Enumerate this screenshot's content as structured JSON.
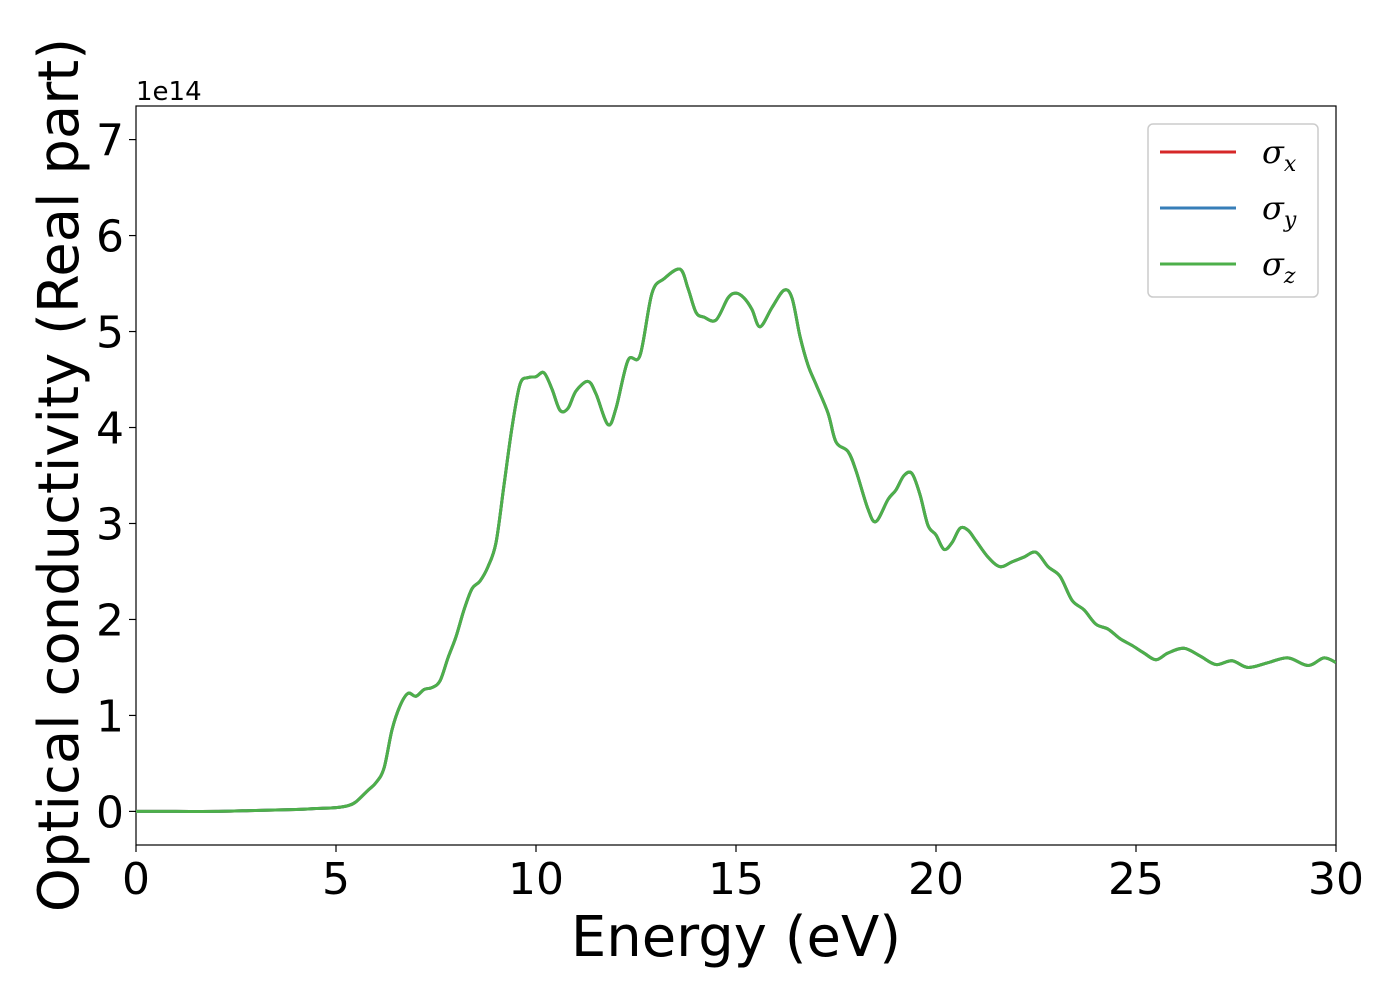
{
  "chart_data": {
    "type": "line",
    "xlabel": "Energy (eV)",
    "ylabel": "Optical conductivity (Real part)",
    "y_offset_label": "1e14",
    "xlim": [
      0,
      30
    ],
    "ylim": [
      -0.35,
      7.35
    ],
    "xticks": [
      0,
      5,
      10,
      15,
      20,
      25,
      30
    ],
    "xtick_labels": [
      "0",
      "5",
      "10",
      "15",
      "20",
      "25",
      "30"
    ],
    "yticks": [
      0,
      1,
      2,
      3,
      4,
      5,
      6,
      7
    ],
    "ytick_labels": [
      "0",
      "1",
      "2",
      "3",
      "4",
      "5",
      "6",
      "7"
    ],
    "grid": false,
    "legend_position": "top-right",
    "series": [
      {
        "name": "σx",
        "legend_symbol": "σ",
        "legend_subscript": "x",
        "color": "#d62728",
        "x": [
          0,
          1,
          2,
          3,
          4,
          4.5,
          5,
          5.3,
          5.5,
          5.8,
          6.0,
          6.2,
          6.4,
          6.6,
          6.8,
          7.0,
          7.2,
          7.4,
          7.6,
          7.8,
          8.0,
          8.2,
          8.4,
          8.6,
          8.8,
          9.0,
          9.2,
          9.4,
          9.6,
          9.8,
          10.0,
          10.2,
          10.4,
          10.6,
          10.8,
          11.0,
          11.3,
          11.5,
          11.8,
          12.0,
          12.3,
          12.6,
          12.9,
          13.2,
          13.6,
          13.8,
          14.0,
          14.2,
          14.5,
          14.8,
          15.0,
          15.2,
          15.4,
          15.6,
          15.9,
          16.2,
          16.4,
          16.6,
          16.8,
          17.0,
          17.3,
          17.5,
          17.8,
          18.0,
          18.3,
          18.5,
          18.8,
          19.0,
          19.2,
          19.4,
          19.6,
          19.8,
          20.0,
          20.2,
          20.4,
          20.6,
          20.8,
          21.0,
          21.3,
          21.6,
          21.9,
          22.2,
          22.5,
          22.8,
          23.1,
          23.4,
          23.7,
          24.0,
          24.3,
          24.6,
          24.9,
          25.2,
          25.5,
          25.8,
          26.2,
          26.6,
          27.0,
          27.4,
          27.8,
          28.3,
          28.8,
          29.3,
          29.7,
          30.0
        ],
        "y": [
          0.0,
          0.0,
          0.0,
          0.01,
          0.02,
          0.03,
          0.04,
          0.06,
          0.1,
          0.22,
          0.3,
          0.45,
          0.85,
          1.1,
          1.23,
          1.2,
          1.27,
          1.29,
          1.36,
          1.6,
          1.82,
          2.1,
          2.32,
          2.4,
          2.55,
          2.8,
          3.4,
          4.0,
          4.45,
          4.52,
          4.53,
          4.57,
          4.4,
          4.18,
          4.2,
          4.38,
          4.48,
          4.35,
          4.03,
          4.2,
          4.7,
          4.75,
          5.4,
          5.55,
          5.65,
          5.45,
          5.2,
          5.15,
          5.12,
          5.35,
          5.4,
          5.35,
          5.23,
          5.05,
          5.25,
          5.43,
          5.35,
          4.95,
          4.65,
          4.45,
          4.15,
          3.85,
          3.75,
          3.55,
          3.15,
          3.02,
          3.25,
          3.35,
          3.5,
          3.52,
          3.3,
          2.98,
          2.88,
          2.73,
          2.8,
          2.95,
          2.93,
          2.82,
          2.65,
          2.55,
          2.6,
          2.65,
          2.7,
          2.55,
          2.45,
          2.2,
          2.1,
          1.95,
          1.9,
          1.8,
          1.73,
          1.65,
          1.58,
          1.65,
          1.7,
          1.62,
          1.53,
          1.57,
          1.5,
          1.55,
          1.6,
          1.52,
          1.6,
          1.55
        ]
      },
      {
        "name": "σy",
        "legend_symbol": "σ",
        "legend_subscript": "y",
        "color": "#377eb8",
        "same_as": "σx"
      },
      {
        "name": "σz",
        "legend_symbol": "σ",
        "legend_subscript": "z",
        "color": "#4daf4a",
        "same_as": "σx"
      }
    ]
  }
}
